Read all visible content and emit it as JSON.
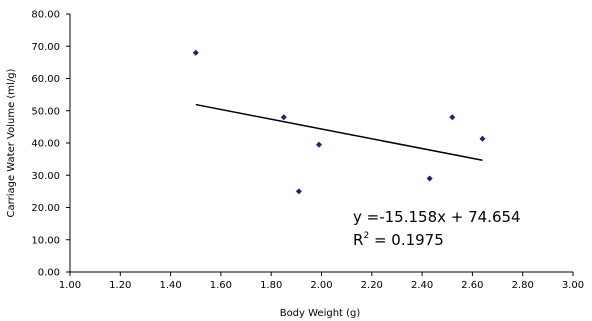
{
  "chart_data": {
    "type": "scatter",
    "xlabel": "Body Weight (g)",
    "ylabel": "Carriage Water Volume (ml/g)",
    "xlim": [
      1.0,
      3.0
    ],
    "ylim": [
      0.0,
      80.0
    ],
    "x_ticks": [
      "1.00",
      "1.20",
      "1.40",
      "1.60",
      "1.80",
      "2.00",
      "2.20",
      "2.40",
      "2.60",
      "2.80",
      "3.00"
    ],
    "y_ticks": [
      "0.00",
      "10.00",
      "20.00",
      "30.00",
      "40.00",
      "50.00",
      "60.00",
      "70.00",
      "80.00"
    ],
    "grid": false,
    "legend": "none",
    "marker_color": "#1a1f8c",
    "points": [
      {
        "x": 1.5,
        "y": 68.0
      },
      {
        "x": 1.85,
        "y": 48.0
      },
      {
        "x": 1.91,
        "y": 25.0
      },
      {
        "x": 1.99,
        "y": 39.5
      },
      {
        "x": 2.43,
        "y": 29.0
      },
      {
        "x": 2.52,
        "y": 48.0
      },
      {
        "x": 2.64,
        "y": 41.3
      }
    ],
    "trendline": {
      "slope": -15.158,
      "intercept": 74.654,
      "x_range": [
        1.5,
        2.64
      ],
      "equation_label": "y =-15.158x + 74.654",
      "r2_prefix": "R",
      "r2_sup": "2",
      "r2_value": " = 0.1975"
    }
  }
}
